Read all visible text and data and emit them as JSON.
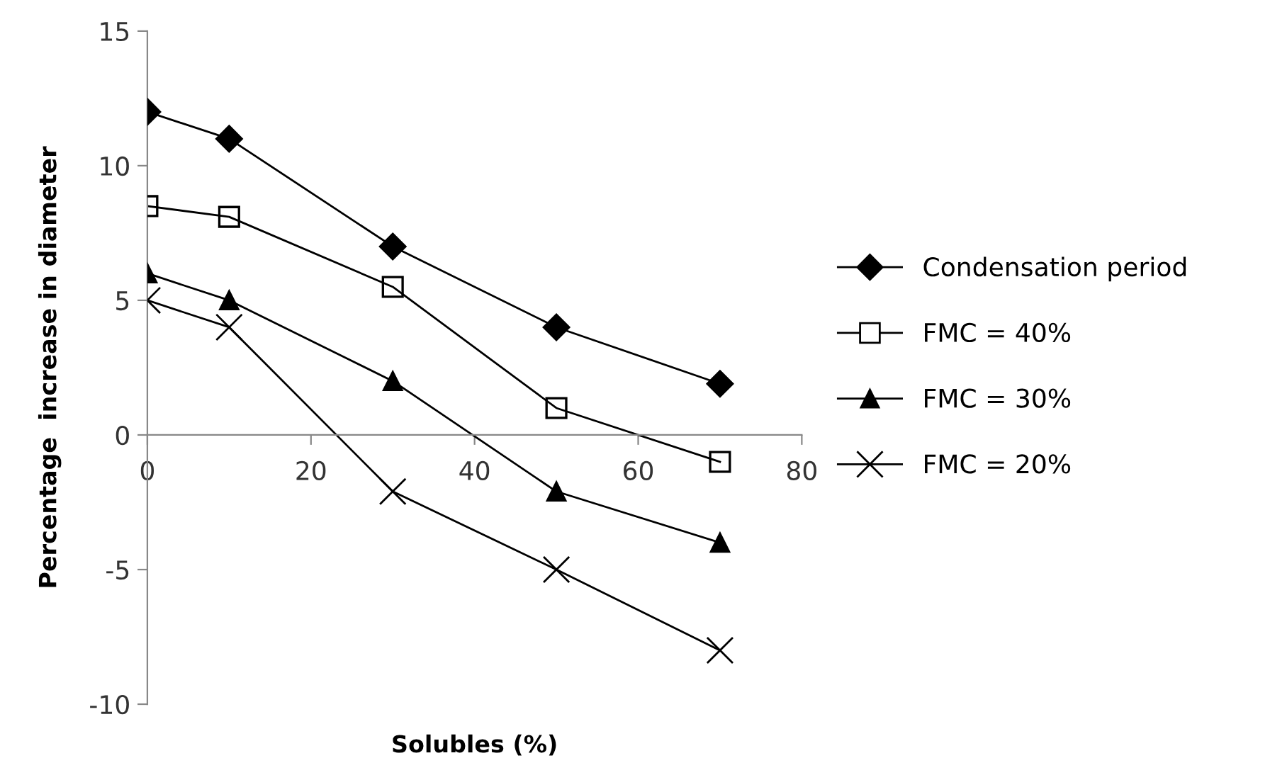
{
  "chart_data": {
    "type": "line",
    "xlabel": "Solubles (%)",
    "ylabel": "Percentage  increase in diameter",
    "x": [
      0,
      10,
      30,
      50,
      70
    ],
    "series": [
      {
        "name": "Condensation period",
        "color": "#000000",
        "marker": "diamond",
        "values": [
          12.0,
          11.0,
          7.0,
          4.0,
          1.9
        ]
      },
      {
        "name": "FMC = 40%",
        "color": "#000000",
        "marker": "square",
        "values": [
          8.5,
          8.1,
          5.5,
          1.0,
          -1.0
        ]
      },
      {
        "name": "FMC = 30%",
        "color": "#000000",
        "marker": "triangle",
        "values": [
          6.0,
          5.0,
          2.0,
          -2.1,
          -4.0
        ]
      },
      {
        "name": "FMC = 20%",
        "color": "#000000",
        "marker": "cross",
        "values": [
          5.0,
          4.0,
          -2.1,
          -5.0,
          -8.0
        ]
      }
    ],
    "xlim": [
      0,
      80
    ],
    "xticks": [
      0,
      20,
      40,
      60,
      80
    ],
    "ylim": [
      -10,
      15
    ],
    "yticks": [
      -10,
      -5,
      0,
      5,
      10,
      15
    ],
    "grid": false,
    "legend": "right",
    "line_style": "solid"
  }
}
